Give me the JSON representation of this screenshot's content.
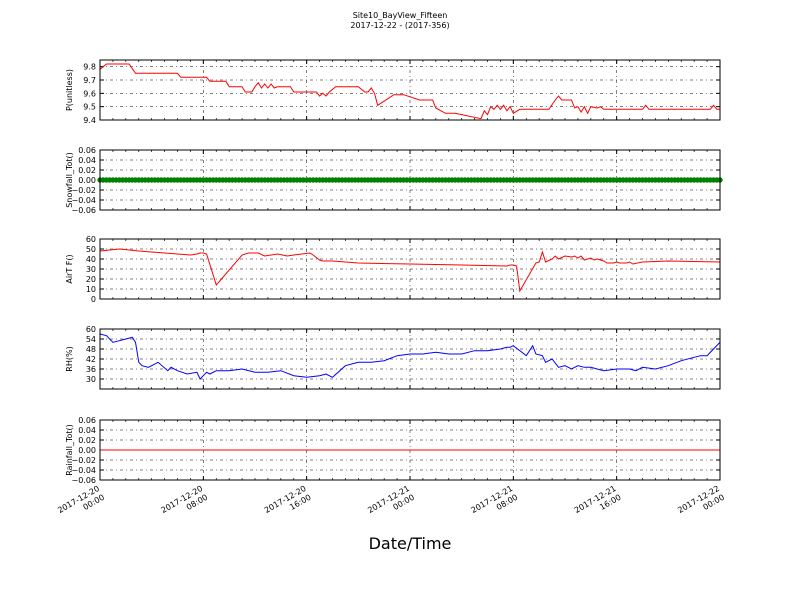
{
  "figure": {
    "title": "Site10_BayView_Fifteen",
    "subtitle": "2017-12-22 - (2017-356)",
    "xlabel": "Date/Time",
    "x_ticks": [
      {
        "value": "2017-12-20 00:00",
        "line1": "2017-12-20",
        "line2": "00:00"
      },
      {
        "value": "2017-12-20 08:00",
        "line1": "2017-12-20",
        "line2": "08:00"
      },
      {
        "value": "2017-12-20 16:00",
        "line1": "2017-12-20",
        "line2": "16:00"
      },
      {
        "value": "2017-12-21 00:00",
        "line1": "2017-12-21",
        "line2": "00:00"
      },
      {
        "value": "2017-12-21 08:00",
        "line1": "2017-12-21",
        "line2": "08:00"
      },
      {
        "value": "2017-12-21 16:00",
        "line1": "2017-12-21",
        "line2": "16:00"
      },
      {
        "value": "2017-12-22 00:00",
        "line1": "2017-12-22",
        "line2": "00:00"
      }
    ]
  },
  "chart_data": [
    {
      "type": "line",
      "ylabel": "P(unitless)",
      "color": "#ff0000",
      "ylim": [
        9.4,
        9.85
      ],
      "yticks": [
        9.4,
        9.5,
        9.6,
        9.7,
        9.8
      ],
      "ytick_labels": [
        "9.4",
        "9.5",
        "9.6",
        "9.7",
        "9.8"
      ],
      "xlim": [
        "2017-12-20 00:00",
        "2017-12-22 00:00"
      ],
      "grid": true,
      "series": [
        {
          "x": [
            "2017-12-20 00:00",
            "2017-12-20 00:30",
            "2017-12-20 02:15",
            "2017-12-20 02:45",
            "2017-12-20 06:00",
            "2017-12-20 06:15",
            "2017-12-20 08:15",
            "2017-12-20 08:30",
            "2017-12-20 09:45",
            "2017-12-20 10:00",
            "2017-12-20 11:00",
            "2017-12-20 11:15",
            "2017-12-20 11:45",
            "2017-12-20 12:00",
            "2017-12-20 12:15",
            "2017-12-20 12:30",
            "2017-12-20 12:45",
            "2017-12-20 13:00",
            "2017-12-20 13:15",
            "2017-12-20 13:30",
            "2017-12-20 13:45",
            "2017-12-20 14:45",
            "2017-12-20 15:00",
            "2017-12-20 16:45",
            "2017-12-20 17:00",
            "2017-12-20 17:15",
            "2017-12-20 17:30",
            "2017-12-20 17:45",
            "2017-12-20 18:15",
            "2017-12-20 20:00",
            "2017-12-20 20:30",
            "2017-12-20 20:45",
            "2017-12-20 21:00",
            "2017-12-20 21:15",
            "2017-12-20 21:30",
            "2017-12-20 22:45",
            "2017-12-20 23:30",
            "2017-12-21 00:45",
            "2017-12-21 01:45",
            "2017-12-21 02:00",
            "2017-12-21 02:45",
            "2017-12-21 03:30",
            "2017-12-21 05:30",
            "2017-12-21 05:45",
            "2017-12-21 06:00",
            "2017-12-21 06:15",
            "2017-12-21 06:30",
            "2017-12-21 06:45",
            "2017-12-21 07:00",
            "2017-12-21 07:15",
            "2017-12-21 07:30",
            "2017-12-21 07:45",
            "2017-12-21 08:00",
            "2017-12-21 08:30",
            "2017-12-21 10:45",
            "2017-12-21 11:15",
            "2017-12-21 11:30",
            "2017-12-21 11:45",
            "2017-12-21 12:30",
            "2017-12-21 12:45",
            "2017-12-21 13:00",
            "2017-12-21 13:15",
            "2017-12-21 13:30",
            "2017-12-21 13:45",
            "2017-12-21 14:00",
            "2017-12-21 14:30",
            "2017-12-21 14:45",
            "2017-12-21 15:00",
            "2017-12-21 18:00",
            "2017-12-21 18:15",
            "2017-12-21 18:30",
            "2017-12-21 23:15",
            "2017-12-21 23:30",
            "2017-12-21 23:45",
            "2017-12-22 00:00"
          ],
          "y": [
            9.78,
            9.82,
            9.82,
            9.75,
            9.75,
            9.72,
            9.72,
            9.69,
            9.69,
            9.65,
            9.65,
            9.61,
            9.61,
            9.65,
            9.68,
            9.64,
            9.67,
            9.64,
            9.67,
            9.64,
            9.65,
            9.65,
            9.61,
            9.61,
            9.58,
            9.6,
            9.58,
            9.61,
            9.65,
            9.65,
            9.61,
            9.61,
            9.64,
            9.6,
            9.51,
            9.59,
            9.59,
            9.55,
            9.55,
            9.49,
            9.45,
            9.45,
            9.41,
            9.47,
            9.44,
            9.5,
            9.48,
            9.51,
            9.48,
            9.51,
            9.47,
            9.5,
            9.45,
            9.48,
            9.48,
            9.55,
            9.58,
            9.55,
            9.55,
            9.49,
            9.5,
            9.46,
            9.5,
            9.45,
            9.5,
            9.49,
            9.5,
            9.48,
            9.48,
            9.51,
            9.48,
            9.48,
            9.51,
            9.48,
            9.48
          ]
        }
      ]
    },
    {
      "type": "scatter",
      "ylabel": "Snowfall_Tot()",
      "color": "#008000",
      "ylim": [
        -0.06,
        0.06
      ],
      "yticks": [
        -0.06,
        -0.04,
        -0.02,
        0.0,
        0.02,
        0.04,
        0.06
      ],
      "ytick_labels": [
        "−0.06",
        "−0.04",
        "−0.02",
        "0.00",
        "0.02",
        "0.04",
        "0.06"
      ],
      "xlim": [
        "2017-12-20 00:00",
        "2017-12-22 00:00"
      ],
      "grid": true,
      "series": [
        {
          "x_start": "2017-12-20 00:00",
          "x_end": "2017-12-22 00:00",
          "interval_minutes": 15,
          "y": 0
        }
      ]
    },
    {
      "type": "line",
      "ylabel": "AirT F()",
      "color": "#ff0000",
      "ylim": [
        0,
        60
      ],
      "yticks": [
        0,
        10,
        20,
        30,
        40,
        50,
        60
      ],
      "ytick_labels": [
        "0",
        "10",
        "20",
        "30",
        "40",
        "50",
        "60"
      ],
      "xlim": [
        "2017-12-20 00:00",
        "2017-12-22 00:00"
      ],
      "grid": true,
      "series": [
        {
          "x": [
            "2017-12-20 00:00",
            "2017-12-20 01:30",
            "2017-12-20 03:00",
            "2017-12-20 05:00",
            "2017-12-20 07:00",
            "2017-12-20 07:30",
            "2017-12-20 07:45",
            "2017-12-20 08:00",
            "2017-12-20 08:15",
            "2017-12-20 09:00",
            "2017-12-20 11:00",
            "2017-12-20 11:30",
            "2017-12-20 12:15",
            "2017-12-20 12:45",
            "2017-12-20 13:45",
            "2017-12-20 14:30",
            "2017-12-20 15:00",
            "2017-12-20 16:15",
            "2017-12-20 16:30",
            "2017-12-20 17:00",
            "2017-12-20 17:15",
            "2017-12-20 17:30",
            "2017-12-20 18:00",
            "2017-12-20 20:00",
            "2017-12-21 00:00",
            "2017-12-21 04:00",
            "2017-12-21 07:30",
            "2017-12-21 07:45",
            "2017-12-21 08:00",
            "2017-12-21 08:15",
            "2017-12-21 08:30",
            "2017-12-21 09:45",
            "2017-12-21 10:00",
            "2017-12-21 10:15",
            "2017-12-21 10:30",
            "2017-12-21 11:00",
            "2017-12-21 11:15",
            "2017-12-21 11:30",
            "2017-12-21 12:00",
            "2017-12-21 12:30",
            "2017-12-21 12:45",
            "2017-12-21 13:00",
            "2017-12-21 13:15",
            "2017-12-21 13:30",
            "2017-12-21 13:45",
            "2017-12-21 14:00",
            "2017-12-21 14:15",
            "2017-12-21 14:30",
            "2017-12-21 14:45",
            "2017-12-21 15:00",
            "2017-12-21 15:15",
            "2017-12-21 15:45",
            "2017-12-21 16:00",
            "2017-12-21 16:15",
            "2017-12-21 16:45",
            "2017-12-21 17:00",
            "2017-12-21 17:15",
            "2017-12-21 18:00",
            "2017-12-21 20:00",
            "2017-12-22 00:00"
          ],
          "y": [
            48,
            50,
            48,
            46,
            44,
            45,
            46,
            46,
            45,
            14,
            44,
            46,
            46,
            43,
            45,
            43,
            44,
            46,
            44,
            39,
            38,
            38,
            38,
            36,
            35,
            34,
            33,
            34,
            34,
            33,
            8,
            36,
            37,
            47,
            37,
            40,
            43,
            40,
            43,
            42,
            43,
            41,
            43,
            39,
            40,
            41,
            39,
            40,
            39,
            38,
            36,
            36,
            37,
            36,
            36,
            37,
            35,
            37,
            38,
            37
          ]
        }
      ]
    },
    {
      "type": "line",
      "ylabel": "RH(%)",
      "color": "#0000ff",
      "ylim": [
        24,
        60
      ],
      "yticks": [
        30,
        36,
        42,
        48,
        54,
        60
      ],
      "ytick_labels": [
        "30",
        "36",
        "42",
        "48",
        "54",
        "60"
      ],
      "xlim": [
        "2017-12-20 00:00",
        "2017-12-22 00:00"
      ],
      "grid": true,
      "series": [
        {
          "x": [
            "2017-12-20 00:00",
            "2017-12-20 00:30",
            "2017-12-20 01:00",
            "2017-12-20 01:30",
            "2017-12-20 02:00",
            "2017-12-20 02:30",
            "2017-12-20 02:45",
            "2017-12-20 03:00",
            "2017-12-20 03:15",
            "2017-12-20 03:45",
            "2017-12-20 04:30",
            "2017-12-20 05:15",
            "2017-12-20 05:30",
            "2017-12-20 06:00",
            "2017-12-20 06:45",
            "2017-12-20 07:30",
            "2017-12-20 07:45",
            "2017-12-20 08:00",
            "2017-12-20 08:15",
            "2017-12-20 08:30",
            "2017-12-20 09:00",
            "2017-12-20 10:00",
            "2017-12-20 11:00",
            "2017-12-20 12:00",
            "2017-12-20 13:00",
            "2017-12-20 14:00",
            "2017-12-20 15:00",
            "2017-12-20 16:00",
            "2017-12-20 17:00",
            "2017-12-20 17:30",
            "2017-12-20 18:00",
            "2017-12-20 19:00",
            "2017-12-20 20:00",
            "2017-12-20 21:00",
            "2017-12-20 22:00",
            "2017-12-20 23:00",
            "2017-12-21 00:00",
            "2017-12-21 01:00",
            "2017-12-21 02:00",
            "2017-12-21 03:00",
            "2017-12-21 04:00",
            "2017-12-21 05:00",
            "2017-12-21 06:00",
            "2017-12-21 07:00",
            "2017-12-21 07:30",
            "2017-12-21 07:45",
            "2017-12-21 08:00",
            "2017-12-21 09:00",
            "2017-12-21 09:30",
            "2017-12-21 09:45",
            "2017-12-21 10:15",
            "2017-12-21 10:30",
            "2017-12-21 11:00",
            "2017-12-21 11:30",
            "2017-12-21 12:00",
            "2017-12-21 12:30",
            "2017-12-21 13:00",
            "2017-12-21 13:30",
            "2017-12-21 14:00",
            "2017-12-21 15:00",
            "2017-12-21 16:00",
            "2017-12-21 17:00",
            "2017-12-21 17:30",
            "2017-12-21 18:00",
            "2017-12-21 19:00",
            "2017-12-21 20:00",
            "2017-12-21 21:00",
            "2017-12-21 22:00",
            "2017-12-21 22:30",
            "2017-12-21 23:00",
            "2017-12-21 23:30",
            "2017-12-22 00:00"
          ],
          "y": [
            57,
            56,
            52,
            53,
            54,
            55,
            52,
            40,
            38,
            37,
            40,
            35,
            37,
            35,
            33,
            34,
            30,
            32,
            34,
            33,
            35,
            35,
            36,
            34,
            34,
            35,
            32,
            31,
            32,
            33,
            31,
            38,
            40,
            40,
            41,
            44,
            45,
            45,
            46,
            45,
            45,
            47,
            47,
            48,
            49,
            49,
            50,
            44,
            50,
            45,
            44,
            40,
            42,
            37,
            38,
            36,
            38,
            37,
            37,
            35,
            36,
            36,
            35,
            37,
            36,
            38,
            41,
            43,
            44,
            44,
            48,
            52
          ]
        }
      ]
    },
    {
      "type": "line",
      "ylabel": "Rainfall_Tot()",
      "color": "#ff0000",
      "ylim": [
        -0.06,
        0.06
      ],
      "yticks": [
        -0.06,
        -0.04,
        -0.02,
        0.0,
        0.02,
        0.04,
        0.06
      ],
      "ytick_labels": [
        "−0.06",
        "−0.04",
        "−0.02",
        "0.00",
        "0.02",
        "0.04",
        "0.06"
      ],
      "xlim": [
        "2017-12-20 00:00",
        "2017-12-22 00:00"
      ],
      "grid": true,
      "series": [
        {
          "x": [
            "2017-12-20 00:00",
            "2017-12-22 00:00"
          ],
          "y": [
            0,
            0
          ]
        }
      ]
    }
  ]
}
